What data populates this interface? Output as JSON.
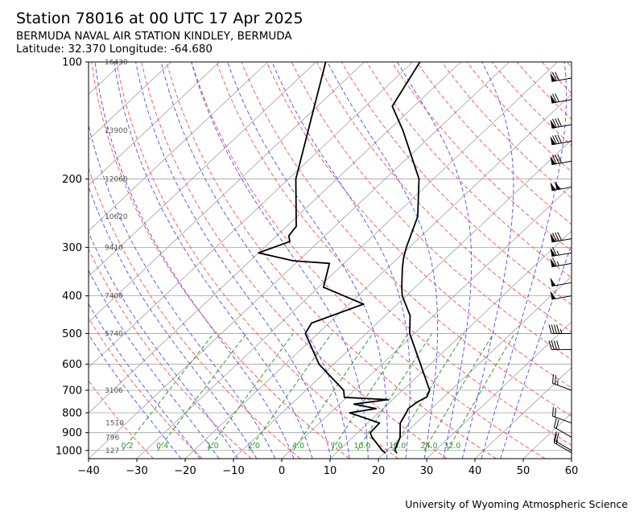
{
  "header": {
    "title": "Station 78016 at 00 UTC 17 Apr 2025",
    "station": "BERMUDA NAVAL AIR STATION KINDLEY, BERMUDA",
    "coords": "Latitude: 32.370 Longitude: -64.680"
  },
  "footer": {
    "credit": "University of Wyoming Atmospheric Science"
  },
  "colors": {
    "temperature": "#000000",
    "dewpoint": "#000000",
    "isotherm": "#a0a0a0",
    "dry_adiabat": "#ff5c5c",
    "moist_adiabat": "#5c5cf0",
    "mixing_ratio": "#2e9a2e",
    "height_label": "#555555"
  },
  "chart_data": {
    "type": "skew-t log-p",
    "title": "Station 78016 at 00 UTC 17 Apr 2025",
    "xlim": [
      -40,
      60
    ],
    "ylim": [
      1050,
      100
    ],
    "y_scale": "log",
    "x_ticks": [
      -40,
      -30,
      -20,
      -10,
      0,
      10,
      20,
      30,
      40,
      50,
      60
    ],
    "y_ticks": [
      1000,
      900,
      800,
      700,
      600,
      500,
      400,
      300,
      200,
      100
    ],
    "grid": true,
    "height_labels": [
      {
        "p": 100,
        "text": "16430"
      },
      {
        "p": 150,
        "text": "13900"
      },
      {
        "p": 200,
        "text": "12060"
      },
      {
        "p": 250,
        "text": "10620"
      },
      {
        "p": 300,
        "text": "9410"
      },
      {
        "p": 400,
        "text": "7400"
      },
      {
        "p": 500,
        "text": "5740"
      },
      {
        "p": 700,
        "text": "3106"
      },
      {
        "p": 850,
        "text": "1510"
      },
      {
        "p": 925,
        "text": "796"
      },
      {
        "p": 1000,
        "text": "127"
      }
    ],
    "mixing_ratio_labels": [
      "0.2",
      "0.4",
      "1.0",
      "2.0",
      "4.0",
      "7.0",
      "10.0",
      "16.0",
      "24.0",
      "32.0"
    ],
    "temperature": {
      "p": [
        1014,
        1000,
        925,
        900,
        850,
        800,
        780,
        750,
        728,
        700,
        600,
        500,
        450,
        400,
        380,
        340,
        320,
        300,
        250,
        200,
        150,
        130,
        100
      ],
      "t": [
        22.5,
        21.6,
        19.8,
        18.8,
        16.7,
        15.7,
        15.2,
        15.6,
        16.5,
        15.6,
        8.0,
        -1.0,
        -4.8,
        -10.8,
        -12.8,
        -16.8,
        -18.8,
        -20.6,
        -25.0,
        -33.0,
        -47.0,
        -54.5,
        -58.5
      ]
    },
    "dewpoint": {
      "p": [
        1014,
        1000,
        925,
        900,
        850,
        800,
        780,
        760,
        740,
        730,
        700,
        600,
        500,
        470,
        420,
        380,
        330,
        325,
        310,
        290,
        280,
        265,
        200,
        100
      ],
      "t": [
        20.1,
        19.0,
        14.0,
        12.6,
        12.4,
        4.0,
        8.5,
        3.0,
        9.0,
        -0.5,
        -2.2,
        -13.0,
        -22.6,
        -23.6,
        -17.0,
        -29.0,
        -33.0,
        -41.0,
        -50.0,
        -46.0,
        -47.5,
        -48.0,
        -58.5,
        -78.0
      ]
    },
    "wind_barbs": [
      {
        "p": 1014,
        "dir": 300,
        "kt": 15
      },
      {
        "p": 1000,
        "dir": 300,
        "kt": 20
      },
      {
        "p": 925,
        "dir": 300,
        "kt": 20
      },
      {
        "p": 850,
        "dir": 290,
        "kt": 20
      },
      {
        "p": 700,
        "dir": 290,
        "kt": 25
      },
      {
        "p": 550,
        "dir": 270,
        "kt": 40
      },
      {
        "p": 500,
        "dir": 270,
        "kt": 45
      },
      {
        "p": 400,
        "dir": 260,
        "kt": 50
      },
      {
        "p": 370,
        "dir": 260,
        "kt": 50
      },
      {
        "p": 330,
        "dir": 260,
        "kt": 65
      },
      {
        "p": 310,
        "dir": 260,
        "kt": 65
      },
      {
        "p": 285,
        "dir": 260,
        "kt": 80
      },
      {
        "p": 210,
        "dir": 260,
        "kt": 100
      },
      {
        "p": 180,
        "dir": 260,
        "kt": 80
      },
      {
        "p": 160,
        "dir": 260,
        "kt": 80
      },
      {
        "p": 145,
        "dir": 260,
        "kt": 80
      },
      {
        "p": 125,
        "dir": 260,
        "kt": 70
      },
      {
        "p": 110,
        "dir": 260,
        "kt": 70
      }
    ]
  }
}
